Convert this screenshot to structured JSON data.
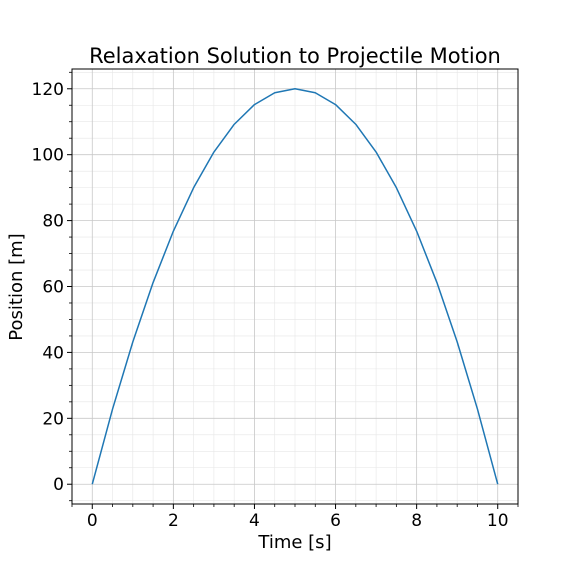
{
  "chart_data": {
    "type": "line",
    "title": "Relaxation Solution to Projectile Motion",
    "xlabel": "Time [s]",
    "ylabel": "Position [m]",
    "xlim": [
      -0.5,
      10.5
    ],
    "ylim": [
      -6,
      126
    ],
    "x_ticks": [
      0,
      2,
      4,
      6,
      8,
      10
    ],
    "y_ticks": [
      0,
      20,
      40,
      60,
      80,
      100,
      120
    ],
    "grid": "major and minor",
    "legend": "none",
    "series": [
      {
        "color": "#1f77b4",
        "x": [
          0,
          0.5,
          1,
          1.5,
          2,
          2.5,
          3,
          3.5,
          4,
          4.5,
          5,
          5.5,
          6,
          6.5,
          7,
          7.5,
          8,
          8.5,
          9,
          9.5,
          10
        ],
        "y": [
          0,
          22.8,
          43.2,
          61.2,
          76.8,
          90.0,
          100.8,
          109.2,
          115.2,
          118.8,
          120.0,
          118.8,
          115.2,
          109.2,
          100.8,
          90.0,
          76.8,
          61.2,
          43.2,
          22.8,
          0
        ]
      }
    ]
  }
}
